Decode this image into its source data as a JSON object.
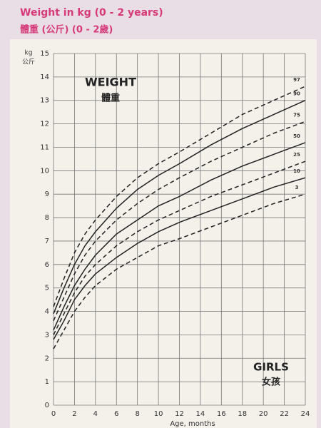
{
  "chart_data": {
    "type": "line",
    "title": "Weight in kg (0 - 2 years)",
    "subtitle": "體重 (公斤) (0 - 2歲)",
    "y_label": "kg",
    "y_label_zh": "公斤",
    "x_label": "Age, months",
    "annotations": [
      "WEIGHT",
      "體重",
      "GIRLS",
      "女孩"
    ],
    "x": [
      0,
      1,
      2,
      3,
      4,
      6,
      8,
      10,
      12,
      15,
      18,
      21,
      24
    ],
    "series": [
      {
        "name": "97",
        "color": "#222222",
        "dashed": true,
        "values": [
          4.2,
          5.4,
          6.5,
          7.3,
          7.9,
          8.9,
          9.7,
          10.3,
          10.8,
          11.6,
          12.4,
          13.0,
          13.6
        ]
      },
      {
        "name": "90",
        "color": "#222222",
        "dashed": false,
        "values": [
          3.9,
          5.0,
          6.0,
          6.8,
          7.4,
          8.4,
          9.2,
          9.8,
          10.3,
          11.1,
          11.8,
          12.4,
          13.0
        ]
      },
      {
        "name": "75",
        "color": "#222222",
        "dashed": true,
        "values": [
          3.6,
          4.6,
          5.6,
          6.4,
          7.0,
          7.9,
          8.6,
          9.2,
          9.7,
          10.4,
          11.0,
          11.6,
          12.1
        ]
      },
      {
        "name": "50",
        "color": "#222222",
        "dashed": false,
        "values": [
          3.2,
          4.2,
          5.1,
          5.8,
          6.4,
          7.3,
          7.9,
          8.5,
          8.9,
          9.6,
          10.2,
          10.7,
          11.2
        ]
      },
      {
        "name": "25",
        "color": "#222222",
        "dashed": true,
        "values": [
          3.0,
          3.9,
          4.8,
          5.5,
          6.0,
          6.8,
          7.4,
          7.9,
          8.3,
          8.9,
          9.4,
          9.9,
          10.4
        ]
      },
      {
        "name": "10",
        "color": "#222222",
        "dashed": false,
        "values": [
          2.8,
          3.6,
          4.5,
          5.1,
          5.6,
          6.3,
          6.9,
          7.4,
          7.8,
          8.3,
          8.8,
          9.3,
          9.7
        ]
      },
      {
        "name": "3",
        "color": "#222222",
        "dashed": true,
        "values": [
          2.4,
          3.2,
          4.0,
          4.6,
          5.1,
          5.8,
          6.3,
          6.8,
          7.1,
          7.6,
          8.1,
          8.6,
          9.0
        ]
      }
    ],
    "xlim": [
      0,
      24
    ],
    "ylim": [
      0,
      15
    ],
    "xticks": [
      0,
      2,
      4,
      6,
      8,
      10,
      12,
      14,
      16,
      18,
      20,
      22,
      24
    ],
    "yticks": [
      0,
      1,
      2,
      3,
      4,
      5,
      6,
      7,
      8,
      9,
      10,
      11,
      12,
      13,
      14,
      15
    ],
    "grid": true
  }
}
